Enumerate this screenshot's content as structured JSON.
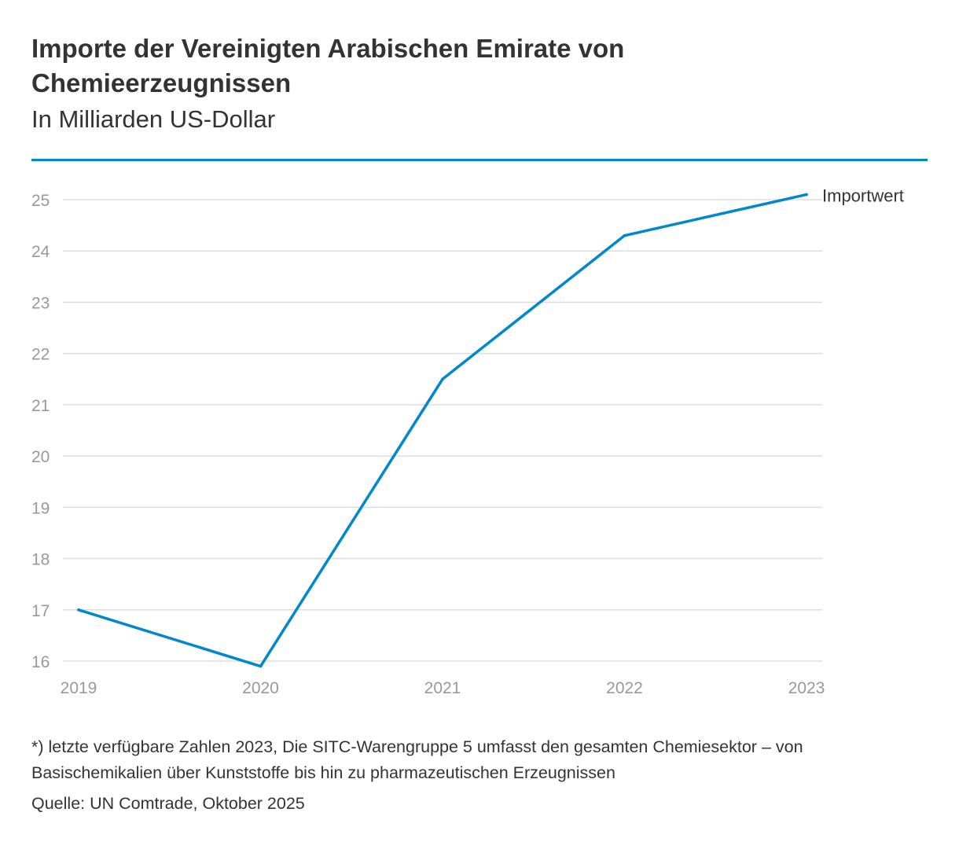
{
  "header": {
    "title": "Importe der Vereinigten Arabischen Emirate von Chemieerzeugnissen",
    "subtitle": "In Milliarden US-Dollar"
  },
  "colors": {
    "accent": "#0088cc",
    "grid": "#dddddd",
    "tick_text": "#999999",
    "text": "#333333"
  },
  "chart_data": {
    "type": "line",
    "title": "Importe der Vereinigten Arabischen Emirate von Chemieerzeugnissen",
    "subtitle": "In Milliarden US-Dollar",
    "xlabel": "",
    "ylabel": "",
    "categories": [
      "2019",
      "2020",
      "2021",
      "2022",
      "2023"
    ],
    "series": [
      {
        "name": "Importwert",
        "values": [
          17.0,
          15.9,
          21.5,
          24.3,
          25.1
        ]
      }
    ],
    "ylim": [
      16,
      25
    ],
    "yticks": [
      16,
      17,
      18,
      19,
      20,
      21,
      22,
      23,
      24,
      25
    ],
    "grid": true,
    "legend": "series label at end of line"
  },
  "footer": {
    "note": "*) letzte verfügbare Zahlen 2023, Die SITC-Warengruppe 5 umfasst den gesamten Chemiesektor – von Basischemikalien über Kunststoffe bis hin zu pharmazeutischen Erzeugnissen",
    "source": "Quelle: UN Comtrade, Oktober 2025"
  }
}
